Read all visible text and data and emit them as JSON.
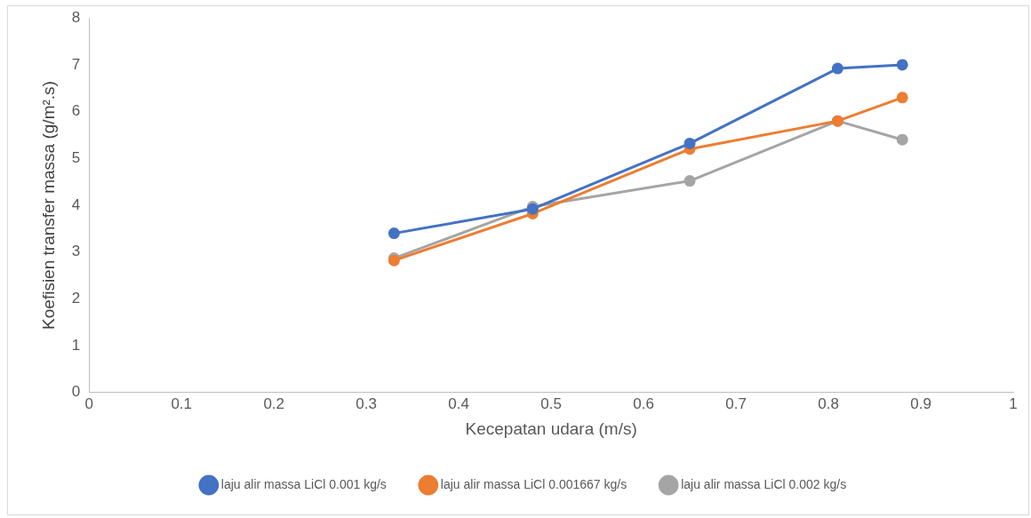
{
  "chart_data": {
    "type": "line",
    "xlabel": "Kecepatan udara (m/s)",
    "ylabel": "Koefisien transfer massa (g/m².s)",
    "x": [
      0.33,
      0.48,
      0.65,
      0.81,
      0.88
    ],
    "series": [
      {
        "name": "laju alir massa LiCl 0.001 kg/s",
        "color": "#4472c4",
        "values": [
          3.4,
          3.92,
          5.32,
          6.92,
          7.0
        ]
      },
      {
        "name": "laju alir massa LiCl 0.001667 kg/s",
        "color": "#ed7d31",
        "values": [
          2.82,
          3.82,
          5.2,
          5.8,
          6.3
        ]
      },
      {
        "name": "laju alir massa LiCl 0.002 kg/s",
        "color": "#a5a5a5",
        "values": [
          2.87,
          3.97,
          4.52,
          5.8,
          5.4
        ]
      }
    ],
    "xlim": [
      0,
      1
    ],
    "xticks": [
      0,
      0.1,
      0.2,
      0.3,
      0.4,
      0.5,
      0.6,
      0.7,
      0.8,
      0.9,
      1
    ],
    "ylim": [
      0,
      8
    ],
    "yticks": [
      0,
      1,
      2,
      3,
      4,
      5,
      6,
      7,
      8
    ],
    "grid": false,
    "legend": "bottom",
    "marker": "circle",
    "line_style": "solid"
  }
}
